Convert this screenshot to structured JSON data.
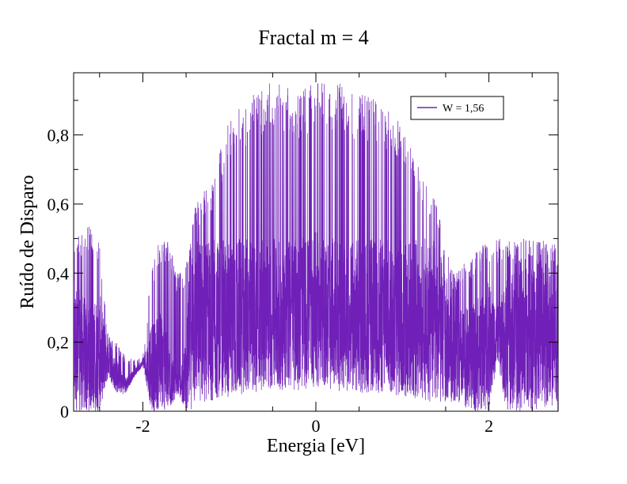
{
  "chart_data": {
    "type": "line",
    "title": "Fractal m = 4",
    "xlabel": "Energia [eV]",
    "ylabel": "Ruído de Disparo",
    "xlim": [
      -2.8,
      2.8
    ],
    "ylim": [
      0,
      0.98
    ],
    "xticks": [
      -2,
      0,
      2
    ],
    "xtick_labels": [
      "-2",
      "0",
      "2"
    ],
    "yticks": [
      0,
      0.2,
      0.4,
      0.6,
      0.8
    ],
    "ytick_labels": [
      "0",
      "0,2",
      "0,4",
      "0,6",
      "0,8"
    ],
    "grid": false,
    "legend_position": "top-right",
    "series": [
      {
        "name": "W = 1,56",
        "color": "#7020B8",
        "style": "dense-oscillating-line",
        "envelope": {
          "x": [
            -2.8,
            -2.6,
            -2.5,
            -2.4,
            -2.3,
            -2.2,
            -2.1,
            -2.0,
            -1.9,
            -1.8,
            -1.7,
            -1.6,
            -1.5,
            -1.45,
            -1.4,
            -1.2,
            -1.0,
            -0.8,
            -0.6,
            -0.4,
            -0.2,
            0.0,
            0.2,
            0.4,
            0.6,
            0.8,
            1.0,
            1.2,
            1.4,
            1.5,
            1.6,
            1.8,
            2.0,
            2.1,
            2.2,
            2.4,
            2.6,
            2.8
          ],
          "y_upper": [
            0.5,
            0.54,
            0.5,
            0.22,
            0.2,
            0.16,
            0.15,
            0.17,
            0.42,
            0.5,
            0.5,
            0.4,
            0.43,
            0.5,
            0.6,
            0.68,
            0.85,
            0.9,
            0.95,
            0.96,
            0.93,
            0.95,
            0.96,
            0.93,
            0.92,
            0.88,
            0.84,
            0.7,
            0.6,
            0.5,
            0.4,
            0.45,
            0.5,
            0.5,
            0.5,
            0.5,
            0.5,
            0.48
          ],
          "y_lower": [
            0.0,
            0.0,
            0.0,
            0.1,
            0.05,
            0.05,
            0.1,
            0.13,
            0.0,
            0.0,
            0.0,
            0.05,
            0.0,
            0.0,
            0.02,
            0.03,
            0.04,
            0.05,
            0.06,
            0.06,
            0.06,
            0.07,
            0.06,
            0.05,
            0.05,
            0.05,
            0.04,
            0.03,
            0.02,
            0.02,
            0.03,
            0.0,
            0.0,
            0.15,
            0.0,
            0.0,
            0.0,
            0.0
          ],
          "y_core": [
            0.38,
            0.3,
            0.35,
            0.18,
            0.15,
            0.1,
            0.12,
            0.15,
            0.25,
            0.3,
            0.2,
            0.1,
            0.2,
            0.5,
            0.5,
            0.5,
            0.5,
            0.5,
            0.5,
            0.5,
            0.5,
            0.52,
            0.5,
            0.5,
            0.5,
            0.5,
            0.5,
            0.5,
            0.5,
            0.4,
            0.3,
            0.3,
            0.38,
            0.3,
            0.38,
            0.45,
            0.45,
            0.4
          ]
        }
      }
    ]
  }
}
